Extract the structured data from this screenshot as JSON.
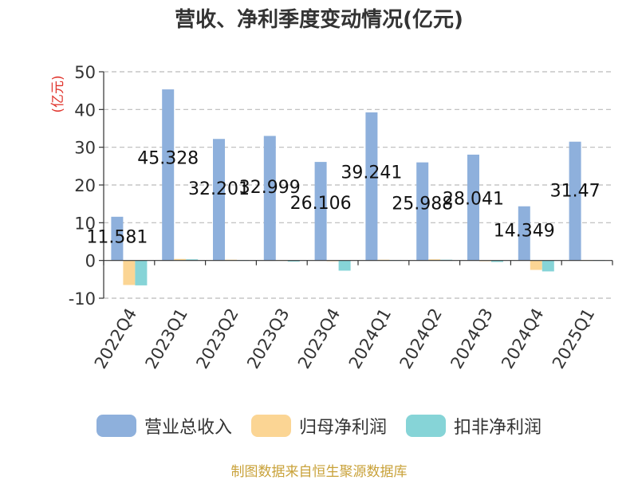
{
  "title": "营收、净利季度变动情况(亿元)",
  "source": "制图数据来自恒生聚源数据库",
  "colors": {
    "revenue": "#8eb0dc",
    "net_profit": "#fbd594",
    "deducted_net_profit": "#86d4d7",
    "unit_label": "#e0342c",
    "grid": "#bbbbbb",
    "axis_text": "#333333"
  },
  "chart_data": {
    "type": "bar",
    "title": "营收、净利季度变动情况(亿元)",
    "ylabel": "(亿元)",
    "xlabel": "",
    "ylim": [
      -10,
      50
    ],
    "yticks": [
      -10,
      0,
      10,
      20,
      30,
      40,
      50
    ],
    "grid": true,
    "legend_position": "bottom",
    "categories": [
      "2022Q4",
      "2023Q1",
      "2023Q2",
      "2023Q3",
      "2023Q4",
      "2024Q1",
      "2024Q2",
      "2024Q3",
      "2024Q4",
      "2025Q1"
    ],
    "series": [
      {
        "name": "营业总收入",
        "values": [
          11.581,
          45.328,
          32.201,
          32.999,
          26.106,
          39.241,
          25.988,
          28.041,
          14.349,
          31.47
        ]
      },
      {
        "name": "归母净利润",
        "values": [
          -6.5,
          0.4,
          0.2,
          0.1,
          -0.2,
          0.2,
          0.3,
          -0.2,
          -2.5,
          0.1
        ]
      },
      {
        "name": "扣非净利润",
        "values": [
          -6.6,
          0.3,
          0.1,
          -0.3,
          -2.7,
          0.1,
          0.2,
          -0.4,
          -2.9,
          0.1
        ]
      }
    ],
    "data_labels": [
      "11.581",
      "45.328",
      "32.201",
      "32.999",
      "26.106",
      "39.241",
      "25.988",
      "28.041",
      "14.349",
      "31.47"
    ]
  }
}
